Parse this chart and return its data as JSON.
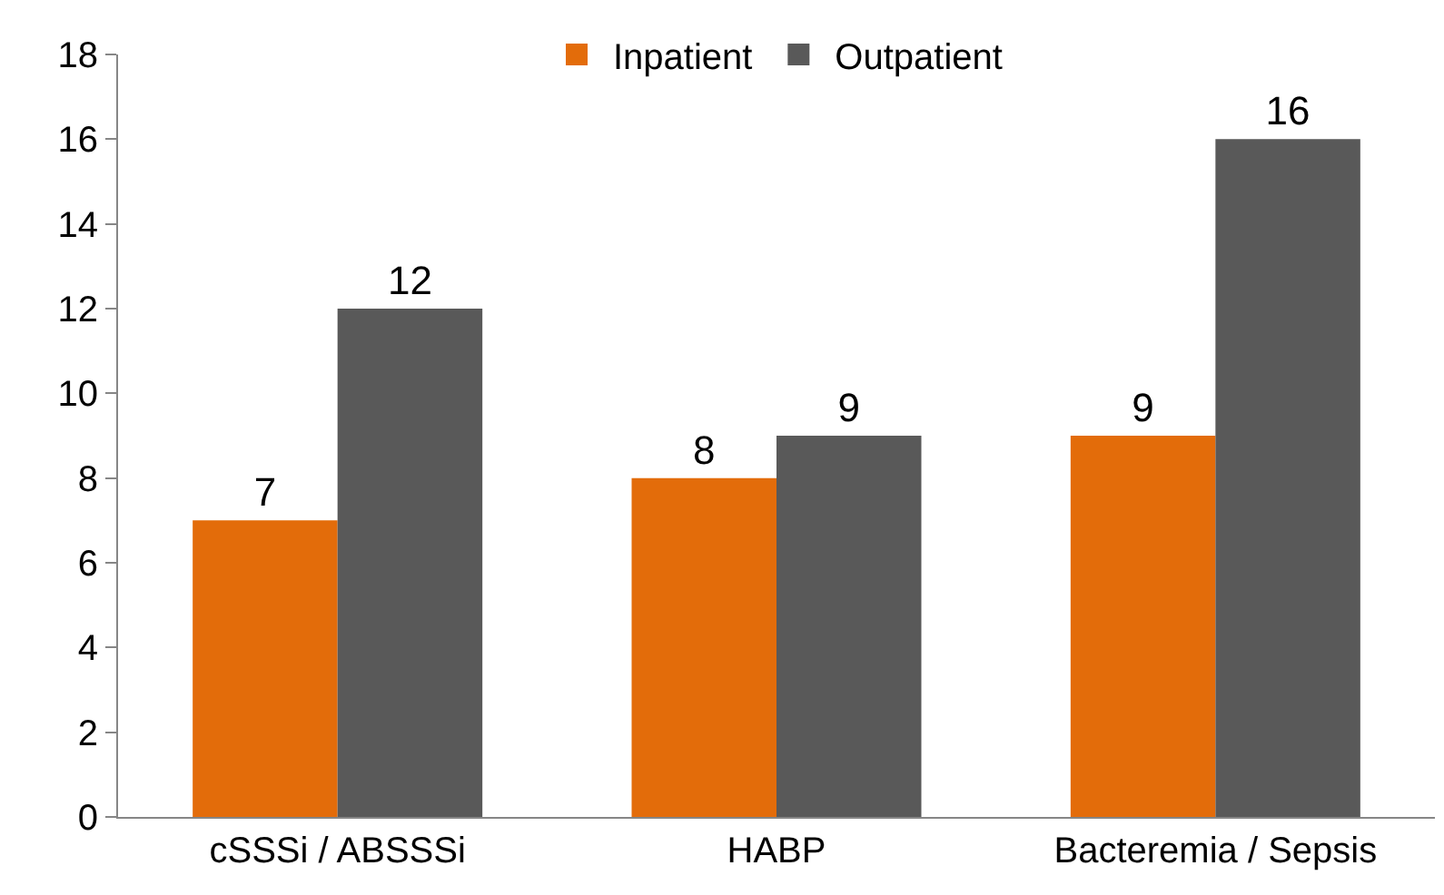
{
  "chart_data": {
    "type": "bar",
    "categories": [
      "cSSSi / ABSSSi",
      "HABP",
      "Bacteremia / Sepsis"
    ],
    "series": [
      {
        "name": "Inpatient",
        "color": "#e36c0a",
        "values": [
          7,
          8,
          9
        ]
      },
      {
        "name": "Outpatient",
        "color": "#595959",
        "values": [
          12,
          9,
          16
        ]
      }
    ],
    "ylim": [
      0,
      18
    ],
    "yticks": [
      0,
      2,
      4,
      6,
      8,
      10,
      12,
      14,
      16,
      18
    ],
    "legend": "top",
    "data_labels": true
  }
}
